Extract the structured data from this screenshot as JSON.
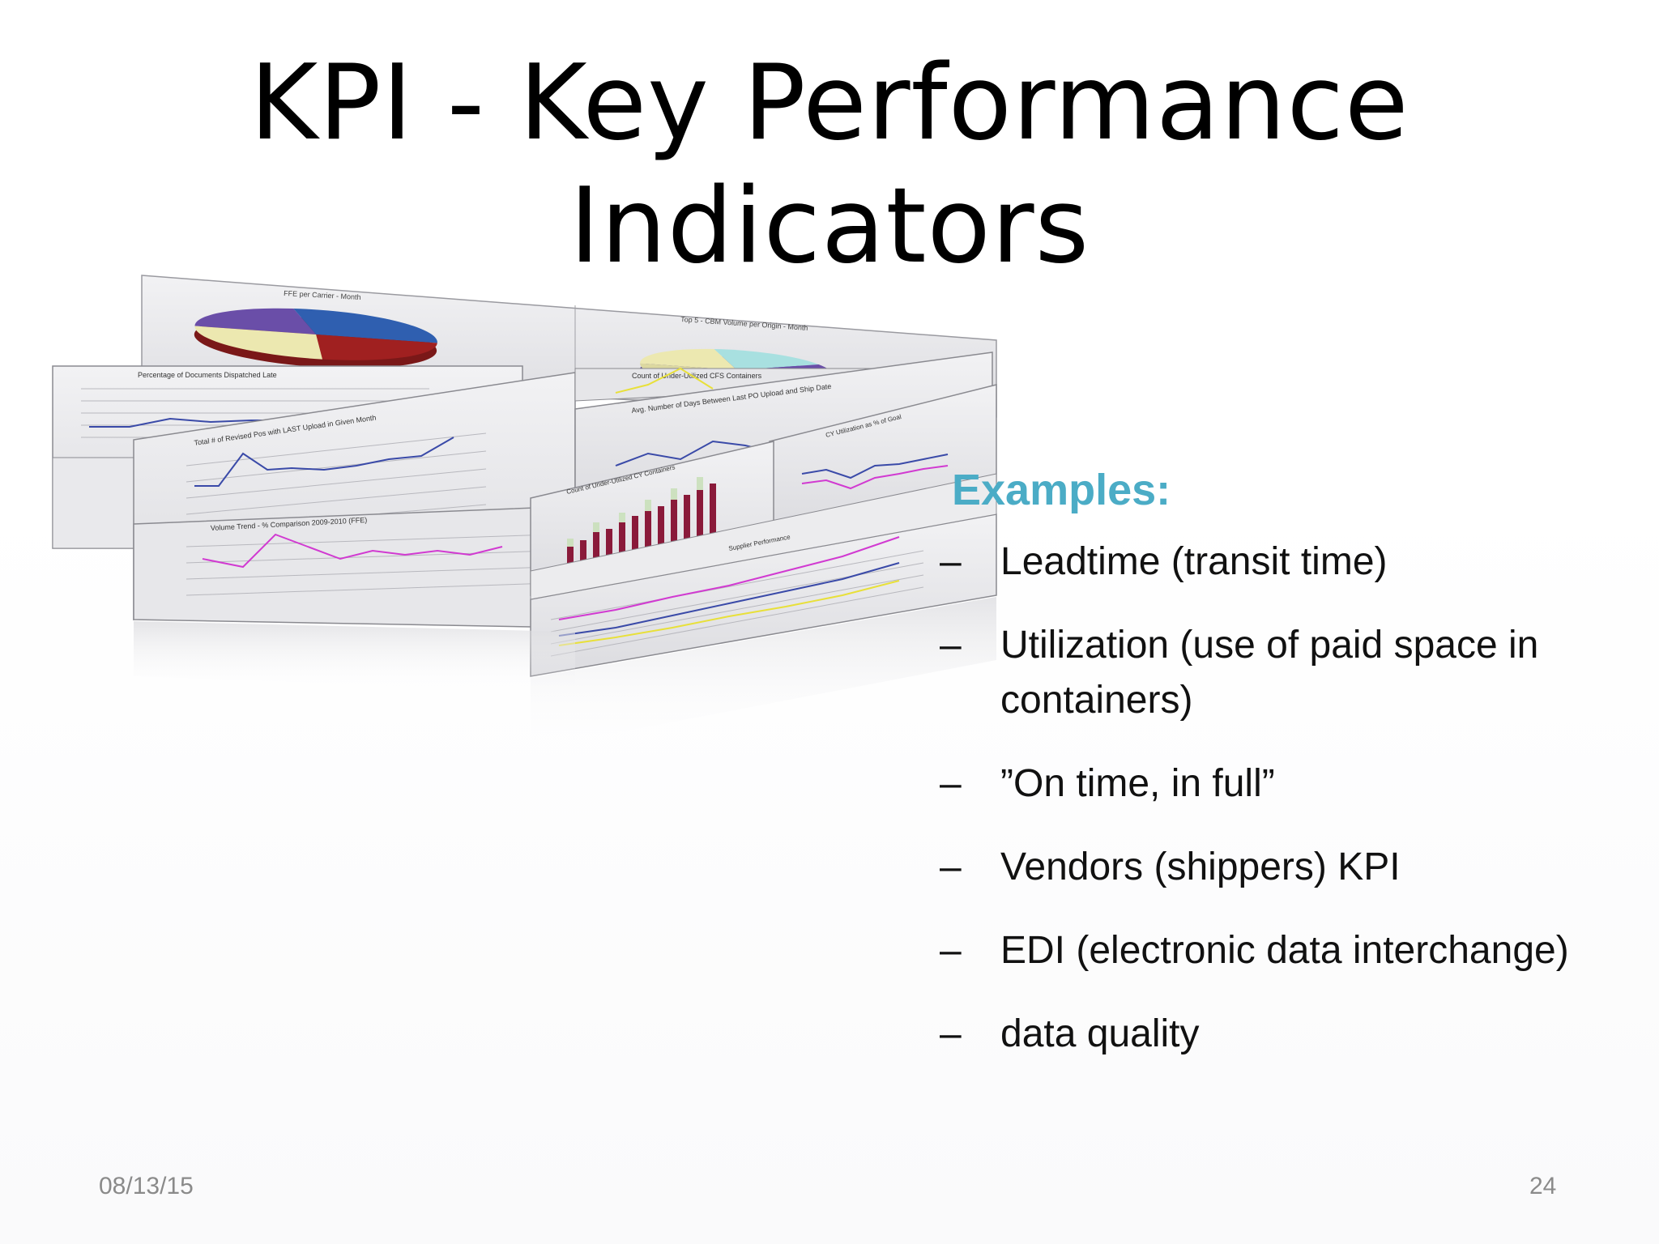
{
  "slide": {
    "title_line1": "KPI - Key Performance",
    "title_line2": "Indicators",
    "examples_heading": "Examples:",
    "bullets": [
      {
        "dash": "–",
        "text": "Leadtime (transit time)"
      },
      {
        "dash": "–",
        "text": "Utilization (use of paid space in containers)"
      },
      {
        "dash": "–",
        "text": "”On time, in full”"
      },
      {
        "dash": "–",
        "text": "Vendors (shippers) KPI"
      },
      {
        "dash": "–",
        "text": "EDI (electronic data interchange)"
      },
      {
        "dash": "–",
        "text": "data quality"
      }
    ],
    "footer_date": "08/13/15",
    "footer_page": "24"
  },
  "collage": {
    "chart_titles": [
      "FFE per Carrier - Month",
      "Top 5 - CBM Volume per Origin - Month",
      "Percentage of Documents Dispatched Late",
      "Count of Under-Utilized CFS Containers",
      "Total # of Revised Pos with LAST Upload in Given Month",
      "Avg. Number of Days Between Last PO Upload and Ship Date",
      "CY Utilization as % of Goal",
      "Count of Under-Utilized CY Containers",
      "Volume Trend - % Comparison 2009-2010 (FFE)",
      "Supplier Performance"
    ],
    "colors": {
      "panel": "#e4e4e6",
      "line_blue": "#3a4aa8",
      "line_magenta": "#d13ad1",
      "line_yellow": "#e8e03a",
      "pie_blue": "#2f5fb0",
      "pie_red": "#a02020",
      "pie_cream": "#ece8b0",
      "pie_purple": "#6a4ea8",
      "bar_red": "#8a1a3a"
    }
  }
}
